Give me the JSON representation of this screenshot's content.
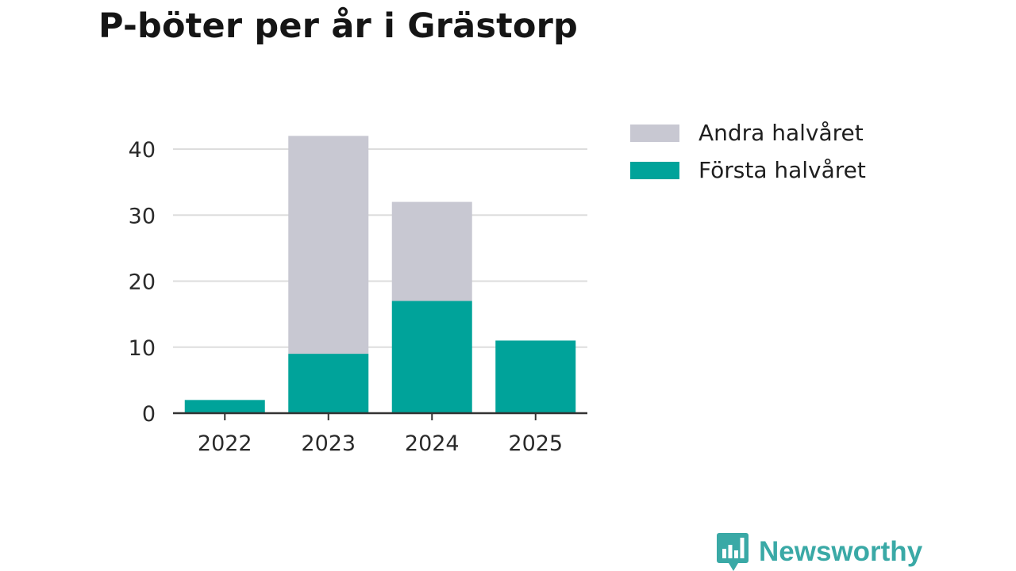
{
  "title": "P-böter per år i Grästorp",
  "chart_data": {
    "type": "bar",
    "stacked": true,
    "title": "P-böter per år i Grästorp",
    "xlabel": "",
    "ylabel": "",
    "categories": [
      "2022",
      "2023",
      "2024",
      "2025"
    ],
    "series": [
      {
        "name": "Första halvåret",
        "values": [
          2,
          9,
          17,
          11
        ],
        "color": "#00a39a"
      },
      {
        "name": "Andra halvåret",
        "values": [
          0,
          33,
          15,
          0
        ],
        "color": "#c8c8d2"
      }
    ],
    "ylim": [
      0,
      45
    ],
    "yticks": [
      0,
      10,
      20,
      30,
      40
    ],
    "grid": true,
    "legend_position": "right",
    "legend_entries": [
      "Andra halvåret",
      "Första halvåret"
    ]
  },
  "colors": {
    "forsta": "#00a39a",
    "andra": "#c8c8d2",
    "gridline": "#dddddd",
    "axis": "#333333",
    "brand": "#3aa9a6"
  },
  "brand": {
    "name": "Newsworthy",
    "icon": "newsworthy-logo-icon"
  }
}
